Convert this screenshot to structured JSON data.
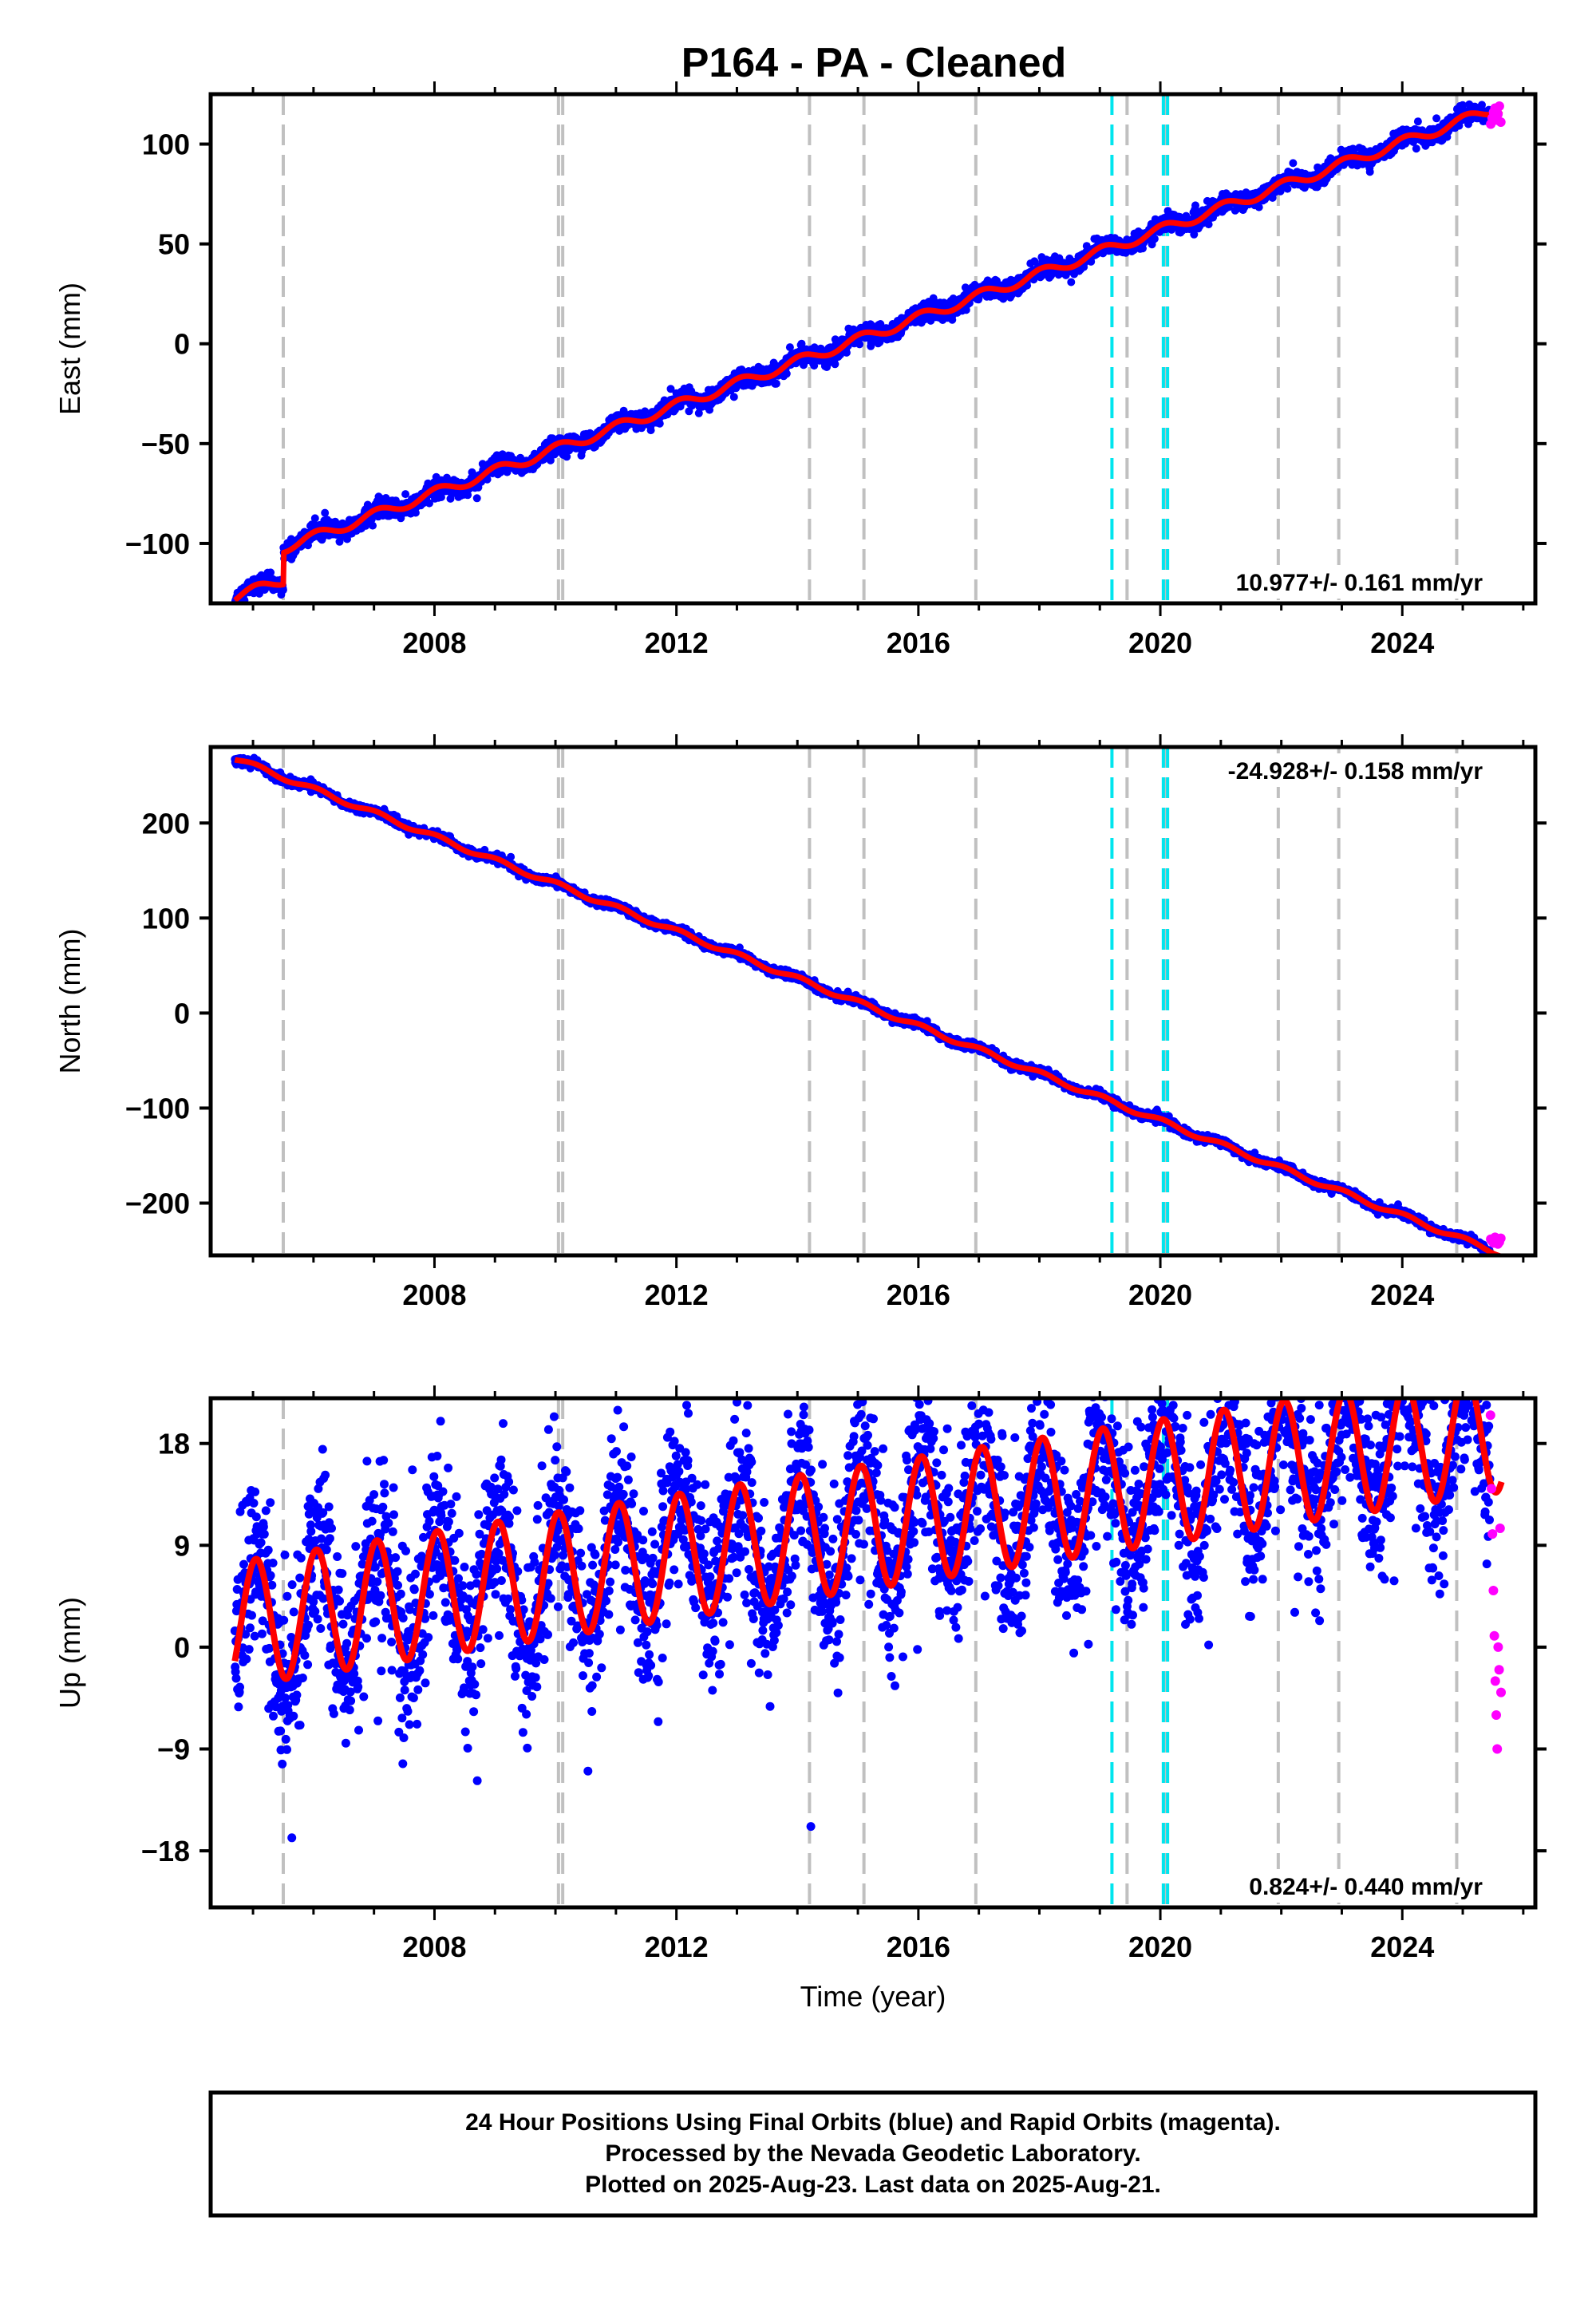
{
  "title": "P164  - PA - Cleaned",
  "colors": {
    "final": "#0000ff",
    "rapid": "#ff00ff",
    "model": "#ff0000",
    "antenna_change": "#c0c0c0",
    "equipment_change": "#00e5ee"
  },
  "chart_data": [
    {
      "type": "scatter",
      "component": "East",
      "ylabel": "East (mm)",
      "xlim": [
        2004.3,
        2026.2
      ],
      "ylim": [
        -130,
        125
      ],
      "yticks": [
        -100,
        -50,
        0,
        50,
        100
      ],
      "yticklabels": [
        "−100",
        "−50",
        "0",
        "50",
        "100"
      ],
      "xticks": [
        2008,
        2012,
        2016,
        2020,
        2024
      ],
      "xticklabels": [
        "2008",
        "2012",
        "2016",
        "2020",
        "2024"
      ],
      "rate_label": "10.977+/- 0.161 mm/yr",
      "rate_position": "bottom-right",
      "start_year": 2004.7,
      "end_year": 2025.64,
      "final_end_year": 2025.45,
      "start_value": -125,
      "rate_mm_per_yr": 10.977,
      "seasonal_amplitude": 2.5,
      "scatter_sd": 2.2,
      "offsets": [
        {
          "year": 2005.5,
          "value": 14
        }
      ],
      "rapid_values": [
        110,
        113,
        116,
        118,
        112,
        115,
        119,
        111
      ]
    },
    {
      "type": "scatter",
      "component": "North",
      "ylabel": "North (mm)",
      "xlim": [
        2004.3,
        2026.2
      ],
      "ylim": [
        -255,
        280
      ],
      "yticks": [
        -200,
        -100,
        0,
        100,
        200
      ],
      "yticklabels": [
        "−200",
        "−100",
        "0",
        "100",
        "200"
      ],
      "xticks": [
        2008,
        2012,
        2016,
        2020,
        2024
      ],
      "xticklabels": [
        "2008",
        "2012",
        "2016",
        "2020",
        "2024"
      ],
      "rate_label": "-24.928+/- 0.158 mm/yr",
      "rate_position": "top-right",
      "start_year": 2004.7,
      "end_year": 2025.64,
      "final_end_year": 2025.45,
      "start_value": 268,
      "rate_mm_per_yr": -24.928,
      "seasonal_amplitude": 2.5,
      "scatter_sd": 2.2,
      "offsets": [],
      "rapid_values": [
        -238,
        -240,
        -242,
        -236,
        -239,
        -243,
        -241,
        -237
      ]
    },
    {
      "type": "scatter",
      "component": "Up",
      "ylabel": "Up (mm)",
      "xlabel": "Time (year)",
      "xlim": [
        2004.3,
        2026.2
      ],
      "ylim": [
        -23,
        22
      ],
      "yticks": [
        -18,
        -9,
        0,
        9,
        18
      ],
      "yticklabels": [
        "−18",
        "−9",
        "0",
        "9",
        "18"
      ],
      "xticks": [
        2008,
        2012,
        2016,
        2020,
        2024
      ],
      "xticklabels": [
        "2008",
        "2012",
        "2016",
        "2020",
        "2024"
      ],
      "rate_label": "0.824+/- 0.440 mm/yr",
      "rate_position": "bottom-right",
      "start_year": 2004.7,
      "end_year": 2025.64,
      "final_end_year": 2025.45,
      "start_value": 2,
      "rate_mm_per_yr": 0.824,
      "seasonal_amplitude": 5.5,
      "scatter_sd": 3.8,
      "offsets": [],
      "rapid_values": [
        20.5,
        14,
        10,
        5,
        1,
        -3,
        -6,
        -9,
        0,
        -2,
        10.5,
        -4
      ]
    }
  ],
  "step_lines": {
    "antenna_change": [
      2005.5,
      2010.05,
      2010.12,
      2014.2,
      2015.1,
      2016.95,
      2019.45,
      2020.07,
      2021.95,
      2022.95,
      2024.9
    ],
    "equipment_change": [
      2019.2,
      2020.05,
      2020.12
    ]
  },
  "footer": {
    "line1": "24 Hour Positions Using Final Orbits (blue) and Rapid Orbits (magenta).",
    "line2": "Processed by the Nevada Geodetic Laboratory.",
    "line3": "Plotted on 2025-Aug-23. Last data on 2025-Aug-21."
  }
}
